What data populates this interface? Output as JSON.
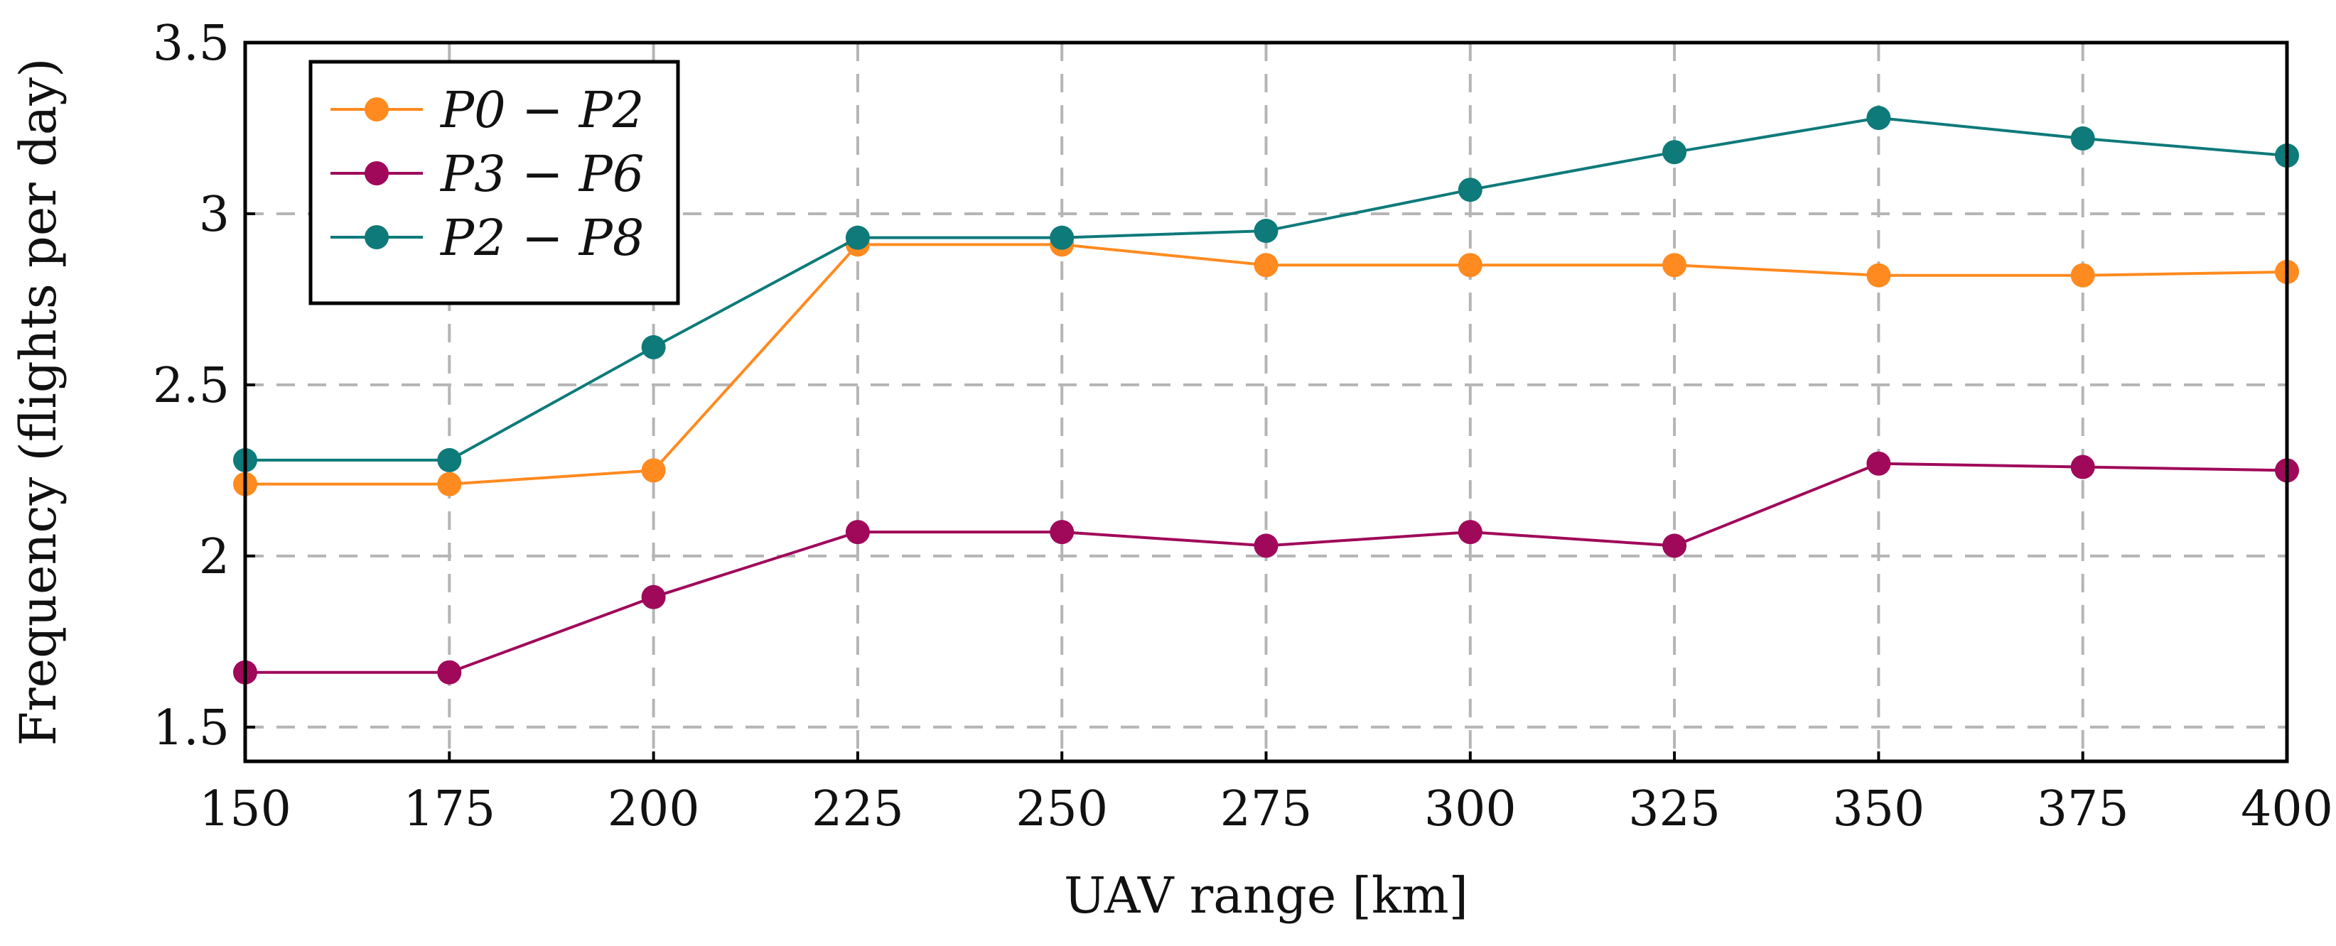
{
  "chart_data": {
    "type": "line",
    "title": "",
    "xlabel": "UAV range [km]",
    "ylabel": "Frequency (flights per day)",
    "x": [
      150,
      175,
      200,
      225,
      250,
      275,
      300,
      325,
      350,
      375,
      400
    ],
    "xlim": [
      150,
      400
    ],
    "ylim": [
      1.4,
      3.5
    ],
    "xticks": [
      "150",
      "175",
      "200",
      "225",
      "250",
      "275",
      "300",
      "325",
      "350",
      "375",
      "400"
    ],
    "yticks": [
      {
        "value": 1.5,
        "label": "1.5"
      },
      {
        "value": 2,
        "label": "2"
      },
      {
        "value": 2.5,
        "label": "2.5"
      },
      {
        "value": 3,
        "label": "3"
      },
      {
        "value": 3.5,
        "label": "3.5"
      }
    ],
    "grid": true,
    "legend_position": "top-left",
    "series": [
      {
        "name": "P0 − P2",
        "color": "#ff8a1f",
        "values": [
          2.21,
          2.21,
          2.25,
          2.91,
          2.91,
          2.85,
          2.85,
          2.85,
          2.82,
          2.82,
          2.83
        ]
      },
      {
        "name": "P3 − P6",
        "color": "#a0085a",
        "values": [
          1.66,
          1.66,
          1.88,
          2.07,
          2.07,
          2.03,
          2.07,
          2.03,
          2.27,
          2.26,
          2.25
        ]
      },
      {
        "name": "P2 − P8",
        "color": "#0e7a7a",
        "values": [
          2.28,
          2.28,
          2.61,
          2.93,
          2.93,
          2.95,
          3.07,
          3.18,
          3.28,
          3.22,
          3.17
        ]
      }
    ]
  }
}
